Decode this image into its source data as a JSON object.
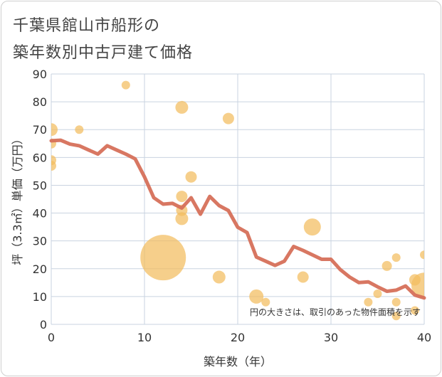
{
  "title_line1": "千葉県館山市船形の",
  "title_line2": "築年数別中古戸建て価格",
  "chart_data": {
    "type": "scatter",
    "xlabel": "築年数（年）",
    "ylabel": "坪（3.3㎡）単価（万円）",
    "xlim": [
      0,
      40
    ],
    "ylim": [
      0,
      90
    ],
    "xticks": [
      0,
      10,
      20,
      30,
      40
    ],
    "yticks": [
      0,
      10,
      20,
      30,
      40,
      50,
      60,
      70,
      80,
      90
    ],
    "grid": true,
    "note": "円の大きさは、取引のあった物件面積を示す",
    "colors": {
      "bubble": "#f2bd5e",
      "line": "#d6705a",
      "grid": "#c9d3e0"
    },
    "bubbles": [
      {
        "x": 0,
        "y": 70,
        "r": 9
      },
      {
        "x": 0,
        "y": 65,
        "r": 7
      },
      {
        "x": 0,
        "y": 59,
        "r": 7
      },
      {
        "x": 0,
        "y": 57,
        "r": 7
      },
      {
        "x": 3,
        "y": 70,
        "r": 6
      },
      {
        "x": 8,
        "y": 86,
        "r": 6
      },
      {
        "x": 12,
        "y": 24,
        "r": 32
      },
      {
        "x": 14,
        "y": 78,
        "r": 9
      },
      {
        "x": 14,
        "y": 46,
        "r": 8
      },
      {
        "x": 14,
        "y": 41,
        "r": 8
      },
      {
        "x": 14,
        "y": 38,
        "r": 9
      },
      {
        "x": 15,
        "y": 53,
        "r": 8
      },
      {
        "x": 18,
        "y": 17,
        "r": 9
      },
      {
        "x": 19,
        "y": 74,
        "r": 8
      },
      {
        "x": 22,
        "y": 10,
        "r": 10
      },
      {
        "x": 23,
        "y": 8,
        "r": 6
      },
      {
        "x": 27,
        "y": 17,
        "r": 8
      },
      {
        "x": 28,
        "y": 35,
        "r": 12
      },
      {
        "x": 34,
        "y": 8,
        "r": 6
      },
      {
        "x": 35,
        "y": 11,
        "r": 6
      },
      {
        "x": 36,
        "y": 21,
        "r": 7
      },
      {
        "x": 37,
        "y": 24,
        "r": 6
      },
      {
        "x": 37,
        "y": 8,
        "r": 6
      },
      {
        "x": 37,
        "y": 3,
        "r": 6
      },
      {
        "x": 39,
        "y": 16,
        "r": 8
      },
      {
        "x": 39,
        "y": 5,
        "r": 6
      },
      {
        "x": 40,
        "y": 25,
        "r": 6
      },
      {
        "x": 40,
        "y": 14,
        "r": 18
      }
    ],
    "line": {
      "x": [
        0,
        1,
        2,
        3,
        4,
        5,
        6,
        7,
        8,
        9,
        10,
        11,
        12,
        13,
        14,
        15,
        16,
        17,
        18,
        19,
        20,
        21,
        22,
        23,
        24,
        25,
        26,
        27,
        28,
        29,
        30,
        31,
        32,
        33,
        34,
        35,
        36,
        37,
        38,
        39,
        40
      ],
      "y": [
        66,
        66.2,
        64.8,
        64.2,
        62.7,
        61.2,
        64.2,
        62.7,
        61.2,
        59.5,
        53,
        45.5,
        43.2,
        43.5,
        41.8,
        45.5,
        39.6,
        46,
        42.7,
        40.9,
        34.9,
        33,
        24.2,
        22.7,
        21.2,
        22.7,
        28,
        26.6,
        25,
        23.4,
        23.4,
        19.7,
        17,
        15,
        15.3,
        13.5,
        11.9,
        12.3,
        13.8,
        10.5,
        9.5
      ]
    }
  }
}
